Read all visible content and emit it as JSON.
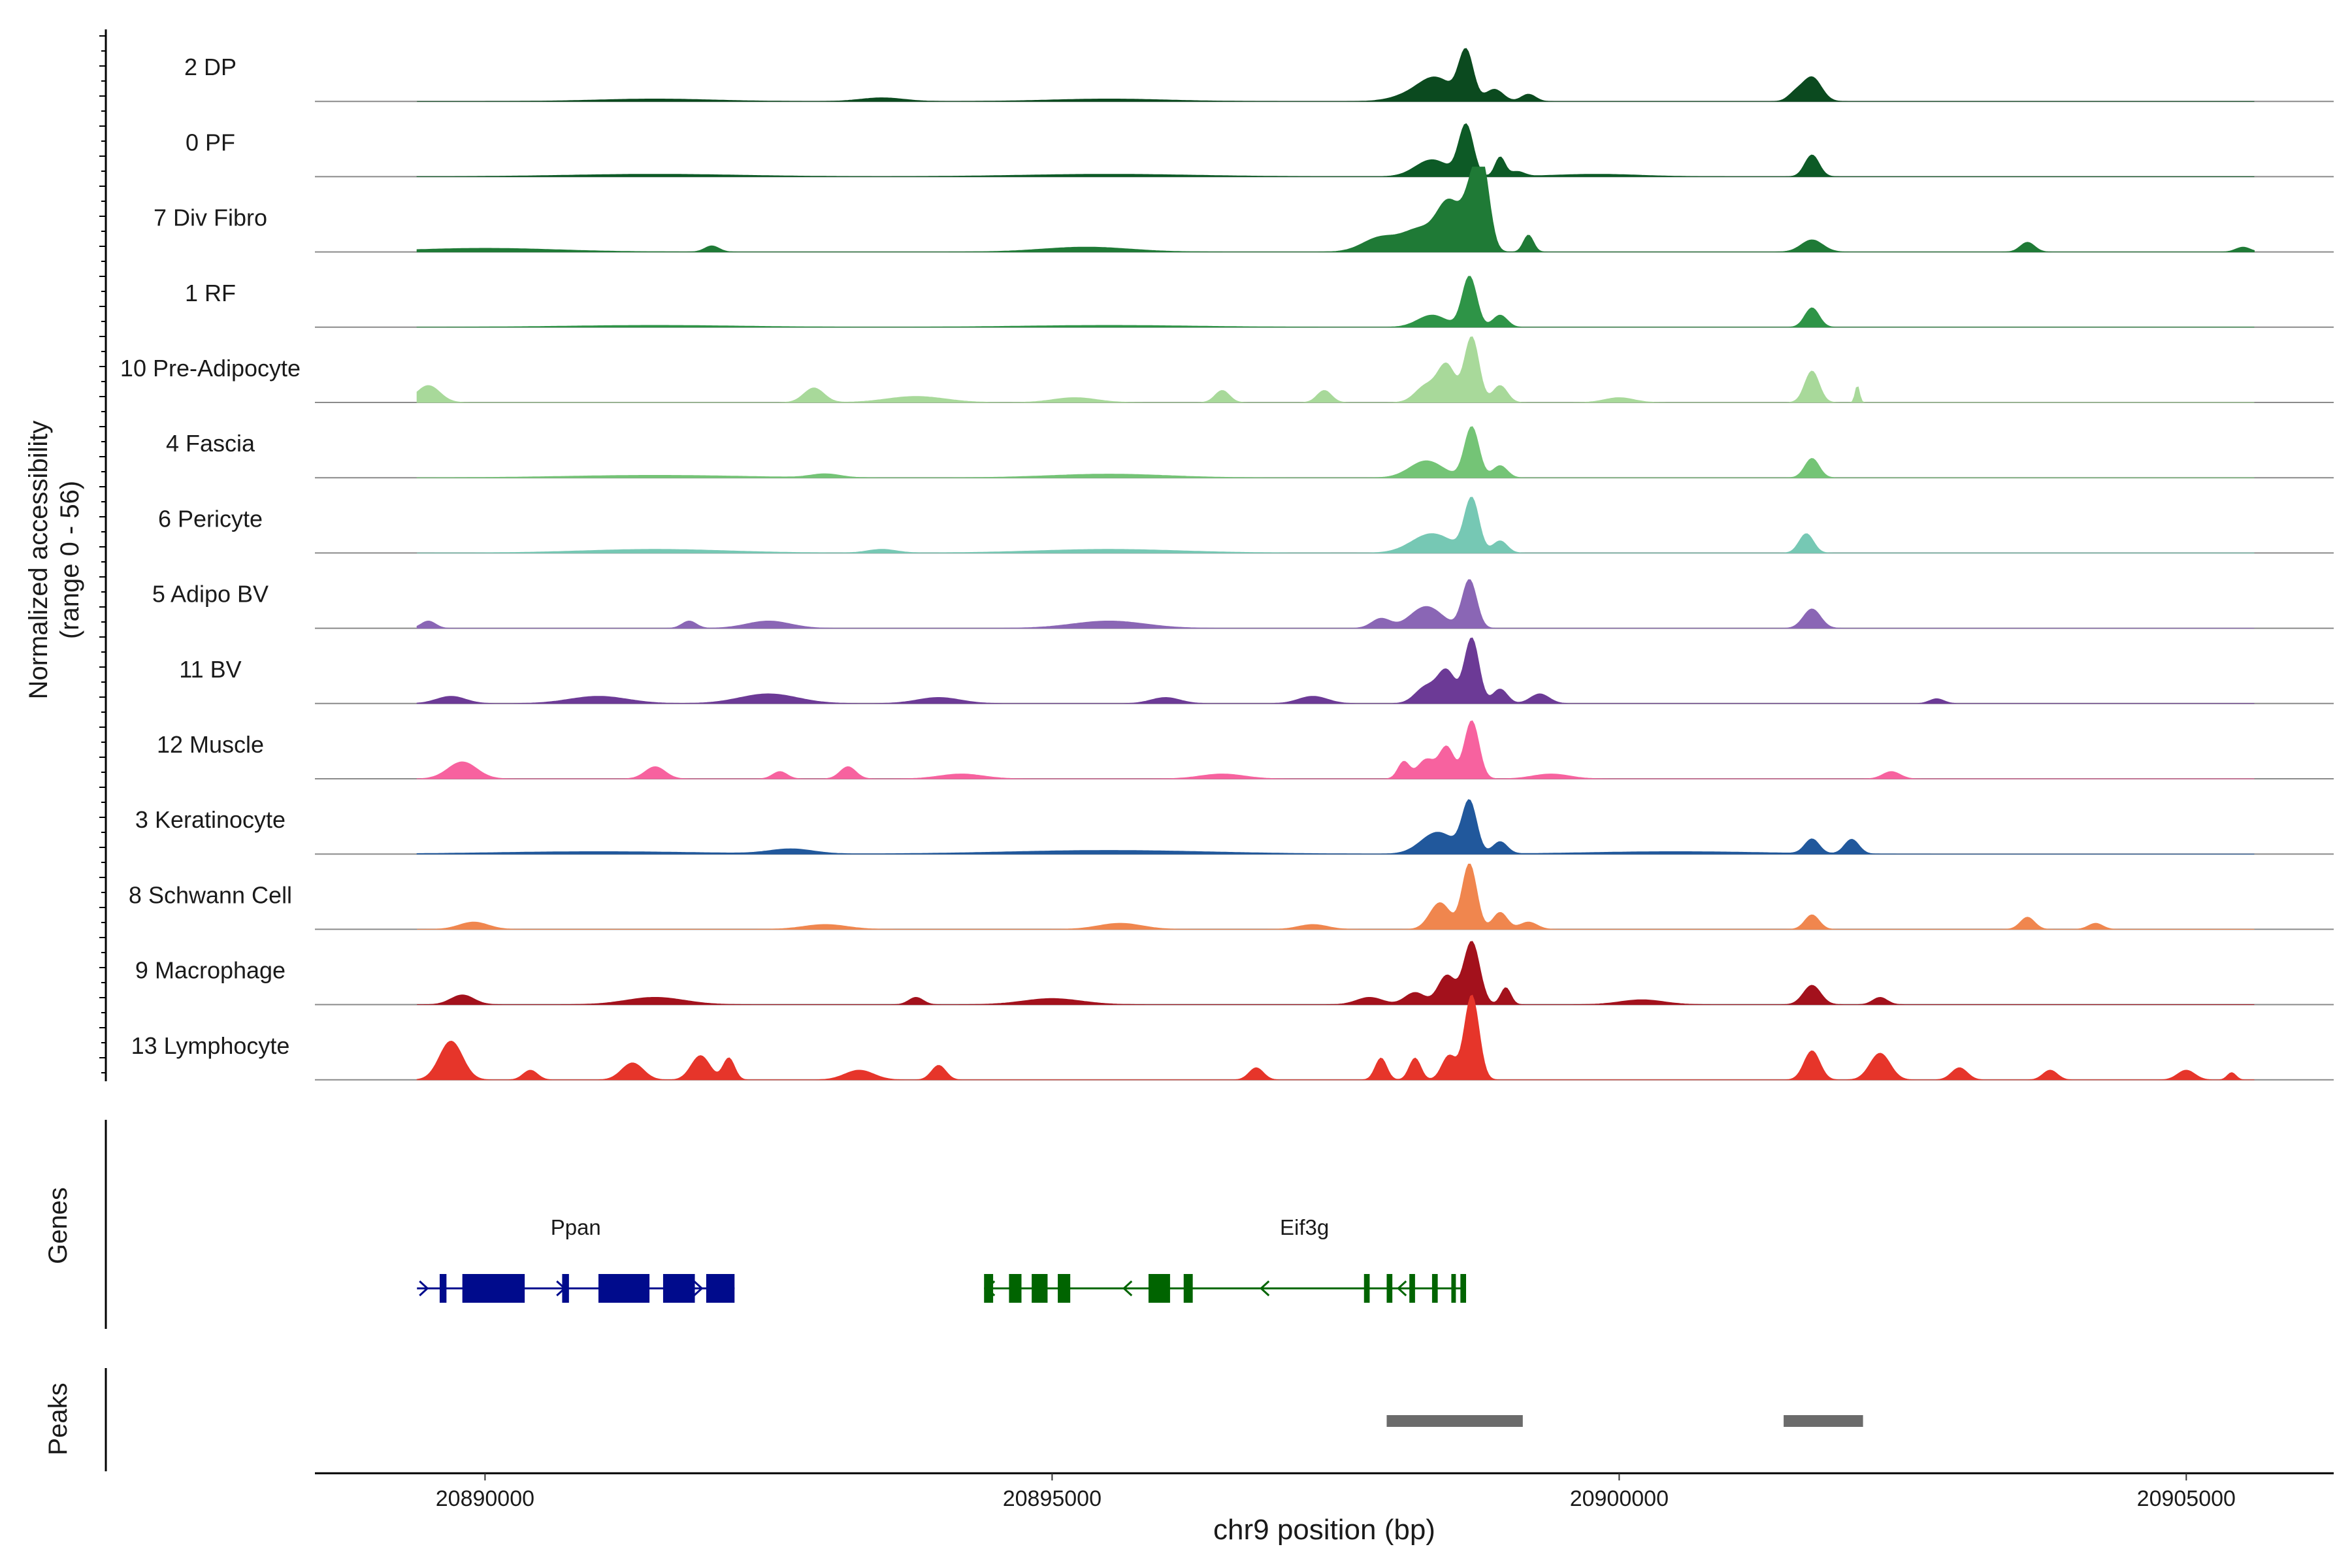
{
  "chart_data": {
    "type": "area",
    "title": "",
    "chromosome": "chr9",
    "xlabel": "chr9 position (bp)",
    "ylabel_line1": "Normalized accessibility",
    "ylabel_line2": "(range 0 - 56)",
    "xlim": [
      20888500,
      20906300
    ],
    "ylim": [
      0,
      56
    ],
    "xticks": [
      20890000,
      20895000,
      20900000,
      20905000
    ],
    "xtick_labels": [
      "20890000",
      "20895000",
      "20900000",
      "20905000"
    ],
    "tracks": [
      {
        "name": "2 DP",
        "color": "#0b4a1f",
        "peaks": [
          [
            20898650,
            40,
            1
          ],
          [
            20898400,
            14,
            2.2
          ],
          [
            20898250,
            8,
            3
          ],
          [
            20898900,
            10,
            1.2
          ],
          [
            20899200,
            6,
            1
          ],
          [
            20901700,
            20,
            1.3
          ],
          [
            20901550,
            6,
            1
          ],
          [
            20895500,
            2,
            8
          ],
          [
            20891500,
            2,
            8
          ],
          [
            20893500,
            3,
            3
          ]
        ]
      },
      {
        "name": "0 PF",
        "color": "#0d5a26",
        "peaks": [
          [
            20898650,
            42,
            1
          ],
          [
            20898350,
            14,
            2.3
          ],
          [
            20898950,
            16,
            0.7
          ],
          [
            20899100,
            4,
            1
          ],
          [
            20901700,
            18,
            1
          ],
          [
            20891500,
            2,
            12
          ],
          [
            20895500,
            2,
            12
          ],
          [
            20899800,
            2,
            6
          ]
        ]
      },
      {
        "name": "7 Div Fibro",
        "color": "#1f7a36",
        "peaks": [
          [
            20898720,
            52,
            1.3
          ],
          [
            20898500,
            38,
            1.6
          ],
          [
            20898800,
            45,
            1
          ],
          [
            20898250,
            18,
            2.3
          ],
          [
            20897900,
            12,
            2.5
          ],
          [
            20899200,
            14,
            0.7
          ],
          [
            20901700,
            10,
            1.5
          ],
          [
            20903600,
            8,
            1
          ],
          [
            20890000,
            3,
            10
          ],
          [
            20895300,
            4,
            6
          ],
          [
            20892000,
            5,
            1
          ],
          [
            20905500,
            4,
            1
          ]
        ]
      },
      {
        "name": "1 RF",
        "color": "#2e9447",
        "peaks": [
          [
            20898680,
            42,
            1
          ],
          [
            20898350,
            10,
            2
          ],
          [
            20898950,
            10,
            1
          ],
          [
            20901700,
            16,
            1
          ],
          [
            20891500,
            1.5,
            12
          ],
          [
            20895500,
            1.5,
            12
          ]
        ]
      },
      {
        "name": "10 Pre-Adipocyte",
        "color": "#a8d99a",
        "peaks": [
          [
            20898700,
            54,
            1
          ],
          [
            20898480,
            30,
            1.2
          ],
          [
            20898300,
            14,
            1.5
          ],
          [
            20898950,
            14,
            1
          ],
          [
            20901700,
            26,
            1
          ],
          [
            20902100,
            14,
            0.3
          ],
          [
            20889500,
            14,
            1.6
          ],
          [
            20892900,
            12,
            1.4
          ],
          [
            20896500,
            10,
            1
          ],
          [
            20897400,
            10,
            1
          ],
          [
            20893800,
            5,
            4
          ],
          [
            20895200,
            4,
            3
          ],
          [
            20900000,
            4,
            2
          ]
        ]
      },
      {
        "name": "4 Fascia",
        "color": "#74c476",
        "peaks": [
          [
            20898700,
            42,
            1
          ],
          [
            20898300,
            14,
            2.3
          ],
          [
            20898950,
            10,
            1
          ],
          [
            20901700,
            16,
            1
          ],
          [
            20891500,
            2,
            12
          ],
          [
            20895500,
            3,
            8
          ],
          [
            20893000,
            3,
            2
          ]
        ]
      },
      {
        "name": "6 Pericyte",
        "color": "#76c8b4",
        "peaks": [
          [
            20898700,
            44,
            1
          ],
          [
            20898350,
            16,
            2.8
          ],
          [
            20898950,
            10,
            1
          ],
          [
            20901650,
            16,
            1
          ],
          [
            20891500,
            3,
            10
          ],
          [
            20895500,
            3,
            10
          ],
          [
            20893500,
            3,
            2
          ]
        ]
      },
      {
        "name": "5 Adipo BV",
        "color": "#8a66b5",
        "peaks": [
          [
            20898680,
            40,
            1
          ],
          [
            20898300,
            18,
            2.2
          ],
          [
            20897900,
            8,
            1.3
          ],
          [
            20901700,
            16,
            1.2
          ],
          [
            20892500,
            6,
            3
          ],
          [
            20895500,
            6,
            5
          ],
          [
            20889500,
            6,
            1
          ],
          [
            20891800,
            6,
            1
          ]
        ]
      },
      {
        "name": "11 BV",
        "color": "#6c3a96",
        "peaks": [
          [
            20898700,
            54,
            1
          ],
          [
            20898480,
            26,
            1.2
          ],
          [
            20898300,
            14,
            1.5
          ],
          [
            20898950,
            12,
            1
          ],
          [
            20899300,
            8,
            1.3
          ],
          [
            20889700,
            6,
            2
          ],
          [
            20891000,
            6,
            4
          ],
          [
            20892500,
            8,
            4
          ],
          [
            20894000,
            5,
            3
          ],
          [
            20896000,
            5,
            2
          ],
          [
            20897300,
            6,
            2
          ],
          [
            20902800,
            4,
            1
          ]
        ]
      },
      {
        "name": "12 Muscle",
        "color": "#f7629f",
        "peaks": [
          [
            20898700,
            48,
            1
          ],
          [
            20898480,
            26,
            1
          ],
          [
            20898300,
            16,
            1.2
          ],
          [
            20898100,
            14,
            0.8
          ],
          [
            20889800,
            14,
            2
          ],
          [
            20891500,
            10,
            1.4
          ],
          [
            20892600,
            6,
            1
          ],
          [
            20893200,
            10,
            1.1
          ],
          [
            20894200,
            4,
            3
          ],
          [
            20896500,
            4,
            3
          ],
          [
            20899400,
            4,
            2.5
          ],
          [
            20902400,
            6,
            1.2
          ]
        ]
      },
      {
        "name": "3 Keratinocyte",
        "color": "#21589c",
        "peaks": [
          [
            20898680,
            42,
            1
          ],
          [
            20898400,
            18,
            2.3
          ],
          [
            20898950,
            10,
            1
          ],
          [
            20901700,
            12,
            1
          ],
          [
            20902050,
            12,
            1
          ],
          [
            20892700,
            4,
            3
          ],
          [
            20891000,
            2,
            14
          ],
          [
            20895500,
            3,
            14
          ],
          [
            20900500,
            2,
            12
          ]
        ]
      },
      {
        "name": "8 Schwann Cell",
        "color": "#f0864e",
        "peaks": [
          [
            20898680,
            54,
            1
          ],
          [
            20898420,
            22,
            1.4
          ],
          [
            20898950,
            14,
            1
          ],
          [
            20899200,
            6,
            1.2
          ],
          [
            20901700,
            12,
            1
          ],
          [
            20903600,
            10,
            1
          ],
          [
            20889900,
            6,
            2
          ],
          [
            20893000,
            4,
            3
          ],
          [
            20895600,
            5,
            3
          ],
          [
            20897300,
            4,
            2
          ],
          [
            20904200,
            5,
            1
          ]
        ]
      },
      {
        "name": "9 Macrophage",
        "color": "#a3111c",
        "peaks": [
          [
            20898700,
            52,
            1.1
          ],
          [
            20898480,
            24,
            1.2
          ],
          [
            20899000,
            14,
            0.7
          ],
          [
            20898200,
            10,
            1.4
          ],
          [
            20897800,
            6,
            1.8
          ],
          [
            20901700,
            16,
            1.2
          ],
          [
            20902300,
            6,
            1
          ],
          [
            20889800,
            8,
            1.6
          ],
          [
            20891500,
            6,
            4
          ],
          [
            20895000,
            5,
            4
          ],
          [
            20893800,
            6,
            1
          ],
          [
            20900200,
            4,
            3
          ]
        ]
      },
      {
        "name": "13 Lymphocyte",
        "color": "#e6352a",
        "peaks": [
          [
            20898700,
            70,
            1
          ],
          [
            20898500,
            20,
            1
          ],
          [
            20898200,
            18,
            0.8
          ],
          [
            20897900,
            18,
            0.8
          ],
          [
            20889700,
            32,
            1.6
          ],
          [
            20891300,
            14,
            1.5
          ],
          [
            20891900,
            20,
            1.3
          ],
          [
            20892150,
            18,
            0.8
          ],
          [
            20894000,
            12,
            1
          ],
          [
            20896800,
            10,
            1
          ],
          [
            20901700,
            24,
            1.1
          ],
          [
            20902300,
            22,
            1.4
          ],
          [
            20903000,
            10,
            1.1
          ],
          [
            20903800,
            8,
            1
          ],
          [
            20905000,
            8,
            1.2
          ],
          [
            20905400,
            6,
            0.6
          ],
          [
            20890400,
            8,
            1
          ],
          [
            20893300,
            8,
            2
          ]
        ]
      }
    ],
    "genes": [
      {
        "name": "Ppan",
        "color": "#000b8c",
        "start": 20889400,
        "end": 20892200,
        "strand": "+",
        "exons": [
          [
            20889600,
            20889660
          ],
          [
            20889800,
            20890350
          ],
          [
            20890680,
            20890740
          ],
          [
            20891000,
            20891450
          ],
          [
            20891570,
            20891850
          ],
          [
            20891950,
            20892200
          ]
        ]
      },
      {
        "name": "Eif3g",
        "color": "#006400",
        "start": 20894400,
        "end": 20898650,
        "strand": "-",
        "exons": [
          [
            20894400,
            20894480
          ],
          [
            20894620,
            20894730
          ],
          [
            20894820,
            20894960
          ],
          [
            20895050,
            20895160
          ],
          [
            20895850,
            20896040
          ],
          [
            20896160,
            20896240
          ],
          [
            20897750,
            20897800
          ],
          [
            20897950,
            20898000
          ],
          [
            20898150,
            20898200
          ],
          [
            20898350,
            20898400
          ],
          [
            20898520,
            20898560
          ],
          [
            20898600,
            20898650
          ]
        ]
      }
    ],
    "track_labels": {
      "genes": "Genes",
      "peaks": "Peaks"
    },
    "peak_regions": [
      [
        20897950,
        20899150
      ],
      [
        20901450,
        20902150
      ]
    ]
  }
}
